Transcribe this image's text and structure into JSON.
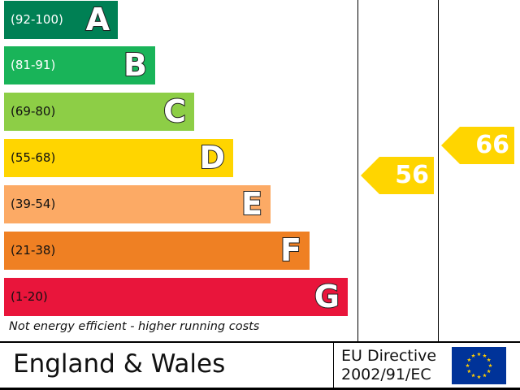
{
  "chart_data": {
    "type": "bar",
    "categories": [
      "A",
      "B",
      "C",
      "D",
      "E",
      "F",
      "G"
    ],
    "bands": [
      {
        "letter": "A",
        "range": "(92-100)",
        "color": "#008054"
      },
      {
        "letter": "B",
        "range": "(81-91)",
        "color": "#19b459"
      },
      {
        "letter": "C",
        "range": "(69-80)",
        "color": "#8dce46"
      },
      {
        "letter": "D",
        "range": "(55-68)",
        "color": "#ffd500"
      },
      {
        "letter": "E",
        "range": "(39-54)",
        "color": "#fcaa65"
      },
      {
        "letter": "F",
        "range": "(21-38)",
        "color": "#ef8023"
      },
      {
        "letter": "G",
        "range": "(1-20)",
        "color": "#e9153b"
      }
    ],
    "current": {
      "value": 56,
      "label": "56",
      "band": "D",
      "color": "#ffd500"
    },
    "potential": {
      "value": 66,
      "label": "66",
      "band": "D",
      "color": "#ffd500"
    },
    "footer_note": "Not energy efficient - higher running costs"
  },
  "footer": {
    "region": "England & Wales",
    "directive_line1": "EU Directive",
    "directive_line2": "2002/91/EC",
    "flag_icon": "eu-flag-icon",
    "flag_color": "#003399",
    "star_color": "#ffcc00"
  }
}
